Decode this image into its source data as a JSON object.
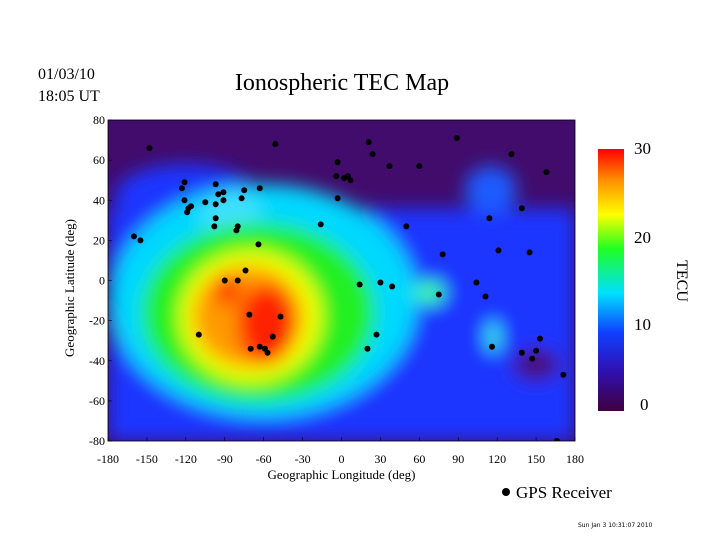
{
  "header": {
    "date": "01/03/10",
    "time": "18:05 UT",
    "title": "Ionospheric TEC Map"
  },
  "footer": {
    "timestamp": "Sun Jan  3 10:31:07 2010"
  },
  "legend": {
    "marker": "filled-circle",
    "label": "GPS Receiver"
  },
  "chart_data": {
    "type": "heatmap",
    "title": "Ionospheric TEC Map",
    "xlabel": "Geographic Longitude (deg)",
    "ylabel": "Geographic Latitude (deg)",
    "xlim": [
      -180,
      180
    ],
    "ylim": [
      -80,
      80
    ],
    "x_ticks": [
      "-180",
      "-150",
      "-120",
      "-90",
      "-60",
      "-30",
      "0",
      "30",
      "60",
      "90",
      "120",
      "150",
      "180"
    ],
    "y_ticks": [
      "80",
      "60",
      "40",
      "20",
      "0",
      "-20",
      "-40",
      "-60",
      "-80"
    ],
    "colorbar": {
      "label": "TECU",
      "range": [
        0,
        30
      ],
      "ticks": [
        "30",
        "20",
        "10",
        "0"
      ],
      "colormap": [
        "#400040",
        "#3010c0",
        "#1040ff",
        "#00e0ff",
        "#20ff20",
        "#ffff00",
        "#ff9000",
        "#ff0000"
      ]
    },
    "peak_region": {
      "description_lon_lat": [
        -60,
        -22
      ],
      "value_approx": 30
    },
    "receivers": [
      [
        -148,
        66
      ],
      [
        -51,
        68
      ],
      [
        -121,
        49
      ],
      [
        -123,
        46
      ],
      [
        -121,
        40
      ],
      [
        -118,
        36
      ],
      [
        -116,
        37
      ],
      [
        -119,
        34
      ],
      [
        -105,
        39
      ],
      [
        -97,
        48
      ],
      [
        -97,
        38
      ],
      [
        -91,
        44
      ],
      [
        -95,
        43
      ],
      [
        -91,
        40
      ],
      [
        -97,
        31
      ],
      [
        -98,
        27
      ],
      [
        -77,
        41
      ],
      [
        -75,
        45
      ],
      [
        -63,
        46
      ],
      [
        -80,
        27
      ],
      [
        -81,
        25
      ],
      [
        -64,
        18
      ],
      [
        -160,
        22
      ],
      [
        -155,
        20
      ],
      [
        -74,
        5
      ],
      [
        -80,
        0
      ],
      [
        -90,
        0
      ],
      [
        -71,
        -17
      ],
      [
        -47,
        -18
      ],
      [
        -110,
        -27
      ],
      [
        -53,
        -28
      ],
      [
        -70,
        -34
      ],
      [
        -63,
        -33
      ],
      [
        -59,
        -34
      ],
      [
        -57,
        -36
      ],
      [
        -16,
        28
      ],
      [
        -3,
        59
      ],
      [
        2,
        51
      ],
      [
        5,
        52
      ],
      [
        -4,
        52
      ],
      [
        7,
        50
      ],
      [
        -3,
        41
      ],
      [
        21,
        69
      ],
      [
        24,
        63
      ],
      [
        37,
        57
      ],
      [
        60,
        57
      ],
      [
        89,
        71
      ],
      [
        131,
        63
      ],
      [
        158,
        54
      ],
      [
        50,
        27
      ],
      [
        78,
        13
      ],
      [
        75,
        -7
      ],
      [
        114,
        31
      ],
      [
        139,
        36
      ],
      [
        121,
        15
      ],
      [
        145,
        14
      ],
      [
        104,
        -1
      ],
      [
        111,
        -8
      ],
      [
        14,
        -2
      ],
      [
        30,
        -1
      ],
      [
        39,
        -3
      ],
      [
        27,
        -27
      ],
      [
        20,
        -34
      ],
      [
        116,
        -33
      ],
      [
        153,
        -29
      ],
      [
        139,
        -36
      ],
      [
        147,
        -39
      ],
      [
        150,
        -35
      ],
      [
        171,
        -47
      ],
      [
        166,
        -80
      ]
    ]
  }
}
